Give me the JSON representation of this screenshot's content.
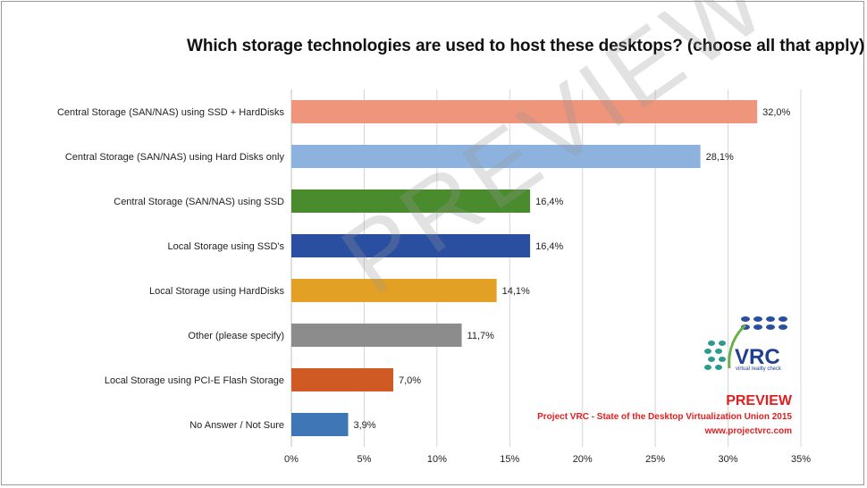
{
  "title": "Which storage technologies are used to host these desktops? (choose all that apply)",
  "watermark": "PREVIEW",
  "branding": {
    "logo_text": "VRC",
    "logo_subtext": "virtual reality check",
    "preview": "PREVIEW",
    "project": "Project VRC - State of the Desktop Virtualization Union 2015",
    "url": "www.projectvrc.com"
  },
  "chart_data": {
    "type": "bar",
    "orientation": "horizontal",
    "categories": [
      "Central Storage (SAN/NAS) using SSD + HardDisks",
      "Central Storage (SAN/NAS) using Hard Disks only",
      "Central Storage (SAN/NAS) using SSD",
      "Local Storage using SSD's",
      "Local Storage using HardDisks",
      "Other (please specify)",
      "Local Storage using PCI-E Flash Storage",
      "No Answer / Not Sure"
    ],
    "values": [
      32.0,
      28.1,
      16.4,
      16.4,
      14.1,
      11.7,
      7.0,
      3.9
    ],
    "value_labels": [
      "32,0%",
      "28,1%",
      "16,4%",
      "16,4%",
      "14,1%",
      "11,7%",
      "7,0%",
      "3,9%"
    ],
    "colors": [
      "#ee957b",
      "#8eb2de",
      "#4a8b2e",
      "#2a4ea0",
      "#e2a124",
      "#8c8c8c",
      "#cf5a23",
      "#3f76b5"
    ],
    "xlim": [
      0,
      35
    ],
    "x_ticks": [
      "0%",
      "5%",
      "10%",
      "15%",
      "20%",
      "25%",
      "30%",
      "35%"
    ],
    "grid": true
  }
}
